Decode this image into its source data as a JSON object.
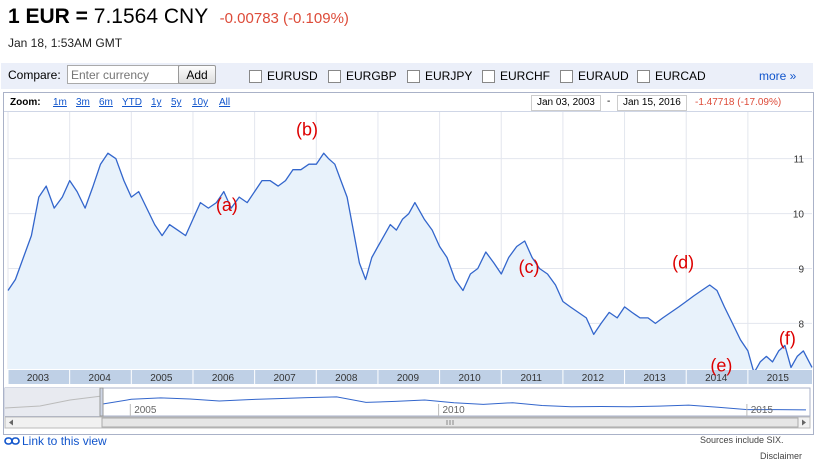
{
  "header": {
    "pair_prefix": "1 EUR =",
    "rate": "7.1564 CNY",
    "change": "-0.00783 (-0.109%)",
    "timestamp": "Jan 18, 1:53AM GMT"
  },
  "compare": {
    "label": "Compare:",
    "placeholder": "Enter currency",
    "add_label": "Add",
    "options": [
      "EURUSD",
      "EURGBP",
      "EURJPY",
      "EURCHF",
      "EURAUD",
      "EURCAD"
    ],
    "more_label": "more »"
  },
  "zoom": {
    "label": "Zoom:",
    "options": [
      "1m",
      "3m",
      "6m",
      "YTD",
      "1y",
      "5y",
      "10y",
      "All"
    ]
  },
  "range": {
    "start": "Jan 03, 2003",
    "separator": "-",
    "end": "Jan 15, 2016",
    "change": "-1.47718 (-17.09%)"
  },
  "chart_data": {
    "type": "area",
    "title": "",
    "xlabel": "",
    "ylabel": "",
    "x_ticks": [
      "2003",
      "2004",
      "2005",
      "2006",
      "2007",
      "2008",
      "2009",
      "2010",
      "2011",
      "2012",
      "2013",
      "2014",
      "2015"
    ],
    "y_ticks": [
      8,
      9,
      10,
      11
    ],
    "xlim": [
      2003.0,
      2016.04
    ],
    "ylim": [
      7.17,
      11.85
    ],
    "grid": true,
    "line_color": "#3366cc",
    "fill_color": "#e8f2fb",
    "series": [
      {
        "x": [
          2003.0,
          2003.12,
          2003.25,
          2003.38,
          2003.5,
          2003.62,
          2003.75,
          2003.88,
          2004.0,
          2004.12,
          2004.25,
          2004.38,
          2004.5,
          2004.62,
          2004.75,
          2004.88,
          2005.0,
          2005.12,
          2005.25,
          2005.38,
          2005.5,
          2005.62,
          2005.75,
          2005.88,
          2006.0,
          2006.12,
          2006.25,
          2006.38,
          2006.5,
          2006.62,
          2006.75,
          2006.88,
          2007.0,
          2007.12,
          2007.25,
          2007.38,
          2007.5,
          2007.62,
          2007.75,
          2007.88,
          2008.0,
          2008.12,
          2008.2,
          2008.3,
          2008.4,
          2008.5,
          2008.6,
          2008.7,
          2008.8,
          2008.9,
          2009.0,
          2009.1,
          2009.2,
          2009.3,
          2009.4,
          2009.5,
          2009.6,
          2009.75,
          2009.88,
          2010.0,
          2010.12,
          2010.25,
          2010.38,
          2010.5,
          2010.62,
          2010.75,
          2010.88,
          2011.0,
          2011.12,
          2011.25,
          2011.38,
          2011.5,
          2011.62,
          2011.75,
          2011.88,
          2012.0,
          2012.12,
          2012.25,
          2012.38,
          2012.5,
          2012.62,
          2012.75,
          2012.88,
          2013.0,
          2013.12,
          2013.25,
          2013.38,
          2013.5,
          2013.62,
          2013.75,
          2013.88,
          2014.0,
          2014.12,
          2014.25,
          2014.38,
          2014.5,
          2014.62,
          2014.75,
          2014.88,
          2015.0,
          2015.1,
          2015.2,
          2015.3,
          2015.4,
          2015.5,
          2015.6,
          2015.7,
          2015.8,
          2015.9,
          2016.04
        ],
        "y": [
          8.6,
          8.8,
          9.2,
          9.6,
          10.3,
          10.5,
          10.1,
          10.3,
          10.6,
          10.4,
          10.1,
          10.5,
          10.9,
          11.1,
          11.0,
          10.6,
          10.3,
          10.4,
          10.1,
          9.8,
          9.6,
          9.8,
          9.7,
          9.6,
          9.9,
          10.2,
          10.1,
          10.2,
          10.4,
          10.1,
          10.3,
          10.2,
          10.4,
          10.6,
          10.6,
          10.5,
          10.6,
          10.8,
          10.8,
          10.9,
          10.9,
          11.1,
          11.0,
          10.9,
          10.6,
          10.3,
          9.7,
          9.1,
          8.8,
          9.2,
          9.4,
          9.6,
          9.8,
          9.7,
          9.9,
          10.0,
          10.2,
          9.9,
          9.7,
          9.4,
          9.2,
          8.8,
          8.6,
          8.9,
          9.0,
          9.3,
          9.1,
          8.9,
          9.2,
          9.4,
          9.5,
          9.2,
          9.0,
          8.9,
          8.7,
          8.4,
          8.3,
          8.2,
          8.1,
          7.8,
          8.0,
          8.2,
          8.1,
          8.3,
          8.2,
          8.1,
          8.1,
          8.0,
          8.1,
          8.2,
          8.3,
          8.4,
          8.5,
          8.6,
          8.7,
          8.6,
          8.3,
          8.0,
          7.7,
          7.5,
          7.1,
          7.3,
          7.4,
          7.3,
          7.5,
          7.6,
          7.2,
          7.4,
          7.5,
          7.2
        ]
      }
    ],
    "annotations": [
      {
        "text": "(a)",
        "x": 2006.55,
        "y": 10.05
      },
      {
        "text": "(b)",
        "x": 2007.85,
        "y": 11.42
      },
      {
        "text": "(c)",
        "x": 2011.45,
        "y": 8.92
      },
      {
        "text": "(d)",
        "x": 2013.95,
        "y": 9.0
      },
      {
        "text": "(e)",
        "x": 2014.57,
        "y": 7.12
      },
      {
        "text": "(f)",
        "x": 2015.64,
        "y": 7.62
      }
    ],
    "navigator": {
      "labels": [
        "2005",
        "2010",
        "2015"
      ],
      "label_x": [
        2005.0,
        2010.0,
        2015.0
      ],
      "y": [
        8.9,
        10.3,
        10.7,
        10.4,
        9.8,
        10.2,
        10.5,
        10.8,
        11.0,
        9.4,
        9.7,
        10.1,
        9.3,
        8.8,
        9.3,
        8.5,
        8.1,
        8.2,
        8.1,
        8.3,
        8.6,
        8.0,
        7.3,
        7.3,
        7.2
      ],
      "colors": {
        "line": "#3366cc",
        "frame": "#aab2c8",
        "unselected": "#e8eaf0"
      }
    },
    "annotation_color": "#dd0000"
  },
  "footer": {
    "link_label": "Link to this view",
    "sources": "Sources include SIX.",
    "disclaimer": "Disclaimer"
  },
  "colors": {
    "positive_negative": "#dd4b39",
    "link": "#1155cc",
    "compare_bg": "#ebeff9",
    "axis_strip": "#bfd0e6"
  },
  "icons": [
    "link-icon",
    "checkbox-icon"
  ]
}
